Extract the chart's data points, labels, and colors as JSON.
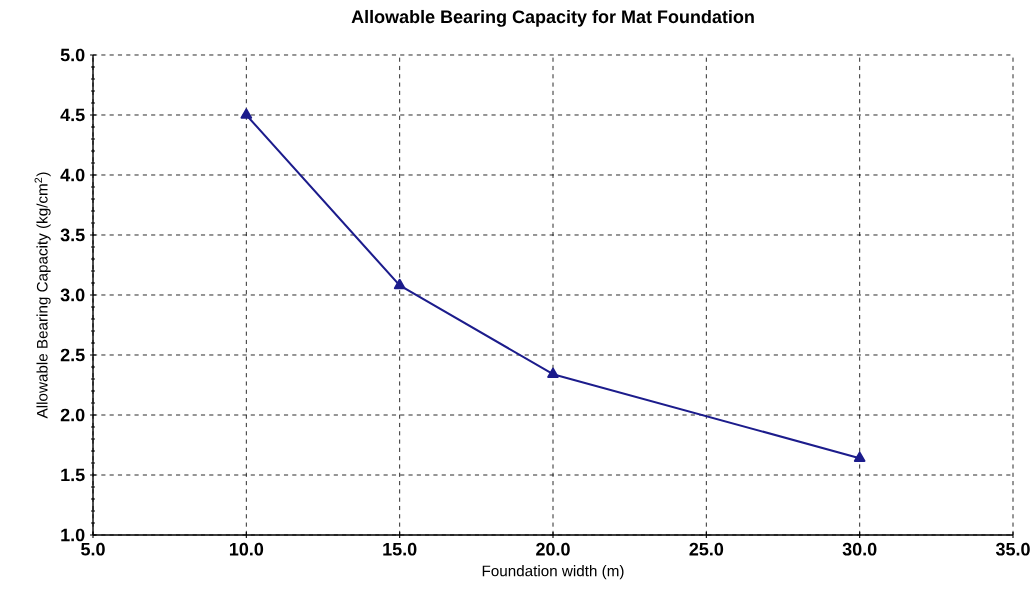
{
  "chart_data": {
    "type": "line",
    "title": "Allowable Bearing Capacity for Mat Foundation",
    "xlabel": "Foundation width (m)",
    "ylabel": "Allowable Bearing Capacity (kg/cm$^{2}$)",
    "x": [
      10,
      15,
      20,
      30
    ],
    "series": [
      {
        "color": "#1c1c8c",
        "values": [
          4.5,
          3.08,
          2.34,
          1.64
        ]
      }
    ],
    "xlim": [
      5,
      35
    ],
    "ylim": [
      1,
      5
    ],
    "xticks": [
      {
        "value": 5,
        "label": "5.0"
      },
      {
        "value": 10,
        "label": "10.0"
      },
      {
        "value": 15,
        "label": "15.0"
      },
      {
        "value": 20,
        "label": "20.0"
      },
      {
        "value": 25,
        "label": "25.0"
      },
      {
        "value": 30,
        "label": "30.0"
      },
      {
        "value": 35,
        "label": "35.0"
      }
    ],
    "yticks": [
      {
        "value": 1,
        "label": "1.0"
      },
      {
        "value": 1.5,
        "label": "1.5"
      },
      {
        "value": 2,
        "label": "2.0"
      },
      {
        "value": 2.5,
        "label": "2.5"
      },
      {
        "value": 3,
        "label": "3.0"
      },
      {
        "value": 3.5,
        "label": "3.5"
      },
      {
        "value": 4,
        "label": "4.0"
      },
      {
        "value": 4.5,
        "label": "4.5"
      },
      {
        "value": 5,
        "label": "5.0"
      }
    ],
    "grid": true,
    "marker": "triangle",
    "line_style": "solid"
  }
}
